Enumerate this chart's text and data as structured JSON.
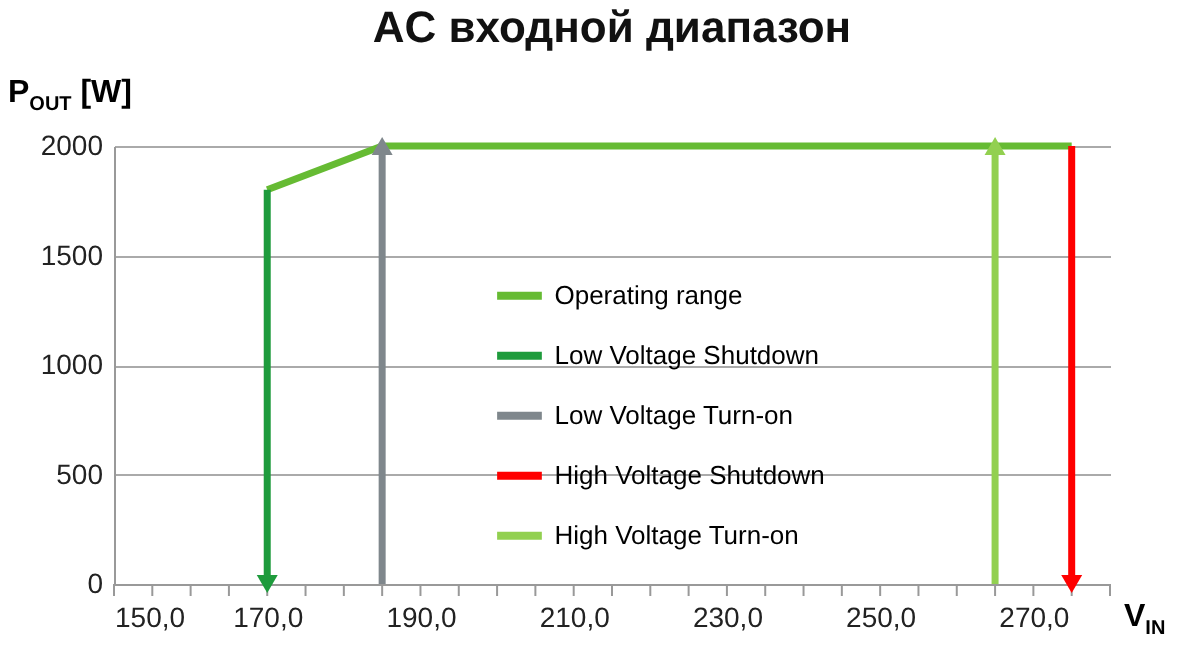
{
  "chart_data": {
    "type": "line",
    "title": "AC входной диапазон",
    "xlabel": "V$_{IN}$",
    "ylabel": "P$_{OUT}$ [W]",
    "series": [
      {
        "name": "Operating range",
        "color": "#66bb33",
        "x": [
          170,
          185,
          275
        ],
        "values": [
          1800,
          2000,
          2000
        ]
      },
      {
        "name": "Low Voltage Shutdown",
        "color": "#1e9b3c",
        "x": [
          170,
          170
        ],
        "values": [
          1800,
          0
        ],
        "marker": "triangle"
      },
      {
        "name": "Low Voltage Turn-on",
        "color": "#7f878c",
        "x": [
          185,
          185
        ],
        "values": [
          0,
          2000
        ],
        "marker": "triangle"
      },
      {
        "name": "High Voltage Shutdown",
        "color": "#ff0000",
        "x": [
          275,
          275
        ],
        "values": [
          2000,
          0
        ],
        "marker": "triangle"
      },
      {
        "name": "High Voltage Turn-on",
        "color": "#92d050",
        "x": [
          265,
          265
        ],
        "values": [
          0,
          2000
        ],
        "marker": "triangle"
      }
    ],
    "xlim": [
      150,
      280
    ],
    "xticks": [
      {
        "value": 150,
        "label": "150,0"
      },
      {
        "value": 155,
        "label": null
      },
      {
        "value": 160,
        "label": null
      },
      {
        "value": 165,
        "label": null
      },
      {
        "value": 170,
        "label": "170,0"
      },
      {
        "value": 175,
        "label": null
      },
      {
        "value": 180,
        "label": null
      },
      {
        "value": 185,
        "label": null
      },
      {
        "value": 190,
        "label": "190,0"
      },
      {
        "value": 195,
        "label": null
      },
      {
        "value": 200,
        "label": null
      },
      {
        "value": 205,
        "label": null
      },
      {
        "value": 210,
        "label": "210,0"
      },
      {
        "value": 215,
        "label": null
      },
      {
        "value": 220,
        "label": null
      },
      {
        "value": 225,
        "label": null
      },
      {
        "value": 230,
        "label": "230,0"
      },
      {
        "value": 235,
        "label": null
      },
      {
        "value": 240,
        "label": null
      },
      {
        "value": 245,
        "label": null
      },
      {
        "value": 250,
        "label": "250,0"
      },
      {
        "value": 255,
        "label": null
      },
      {
        "value": 260,
        "label": null
      },
      {
        "value": 265,
        "label": null
      },
      {
        "value": 270,
        "label": "270,0"
      },
      {
        "value": 275,
        "label": null
      },
      {
        "value": 280,
        "label": null
      }
    ],
    "ylim": [
      0,
      2000
    ],
    "yticks": [
      0,
      500,
      1000,
      1500,
      2000
    ],
    "grid": "y",
    "legend": "center",
    "line_style": "solid"
  }
}
